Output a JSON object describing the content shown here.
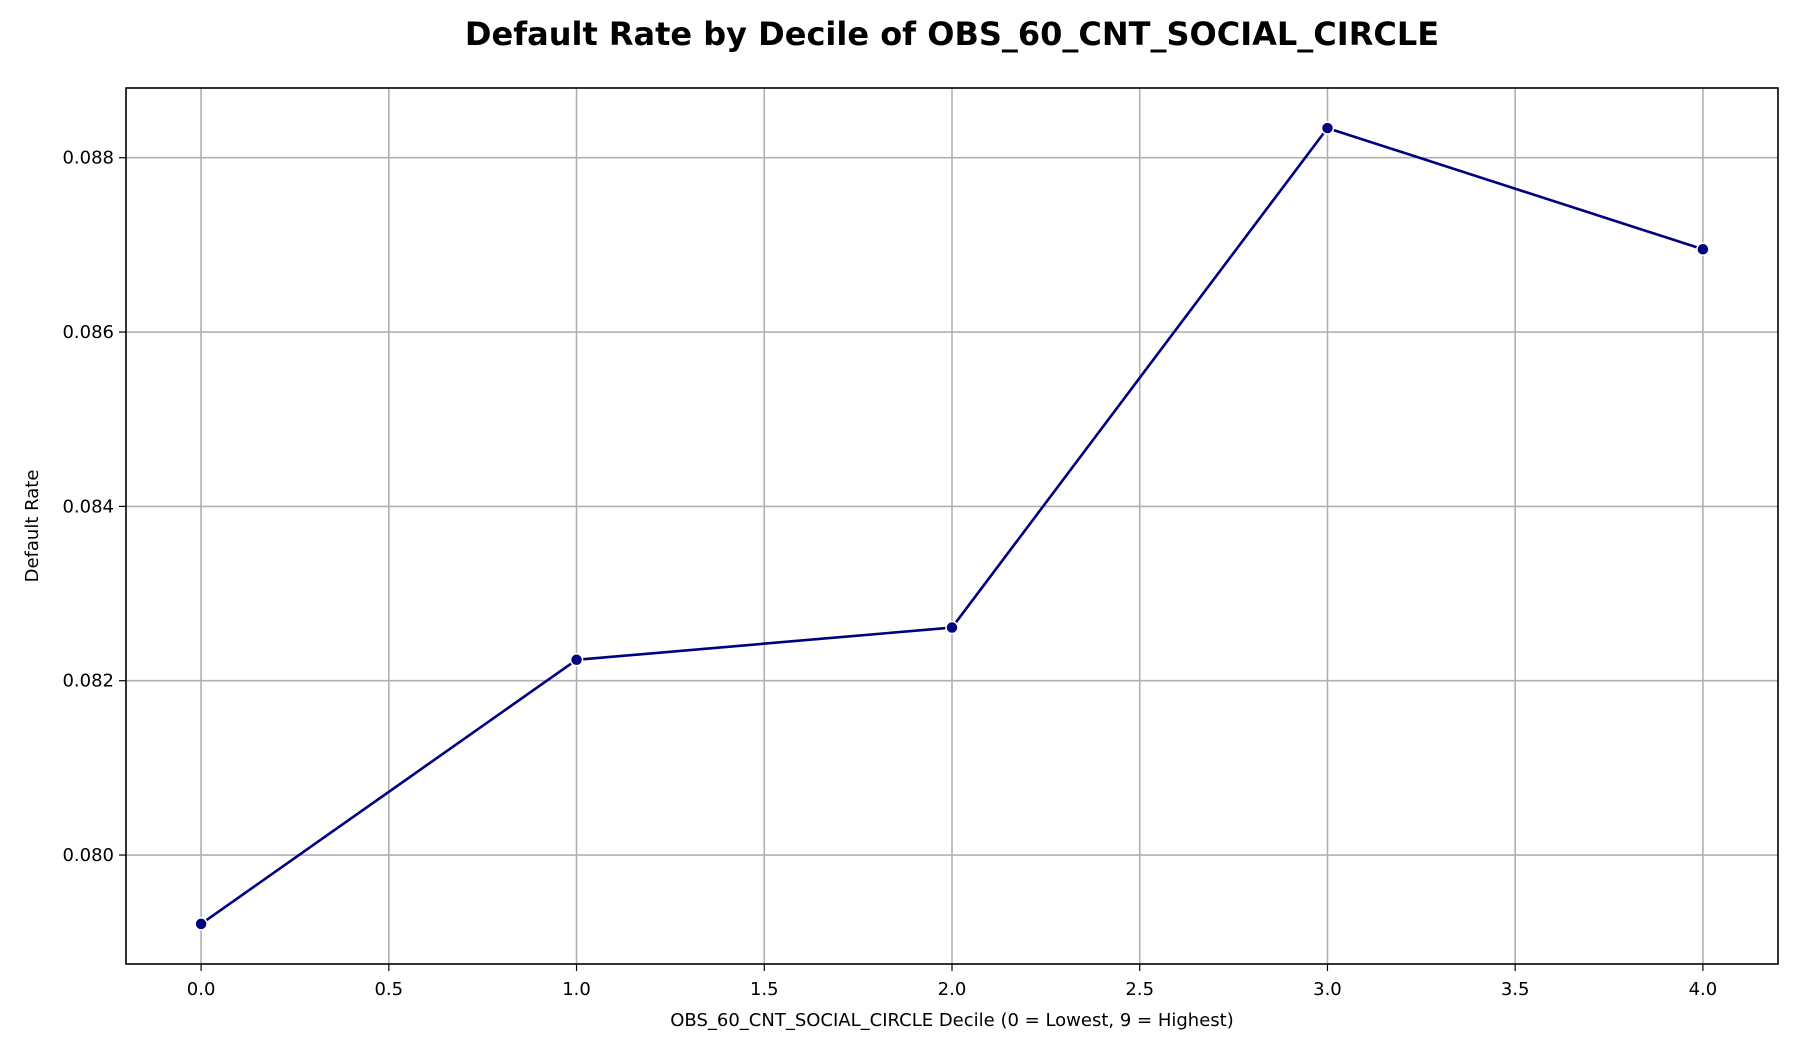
{
  "chart_data": {
    "type": "line",
    "title": "Default Rate by Decile of OBS_60_CNT_SOCIAL_CIRCLE",
    "xlabel": "OBS_60_CNT_SOCIAL_CIRCLE Decile (0 = Lowest, 9 = Highest)",
    "ylabel": "Default Rate",
    "xlim": [
      -0.2,
      4.2
    ],
    "ylim": [
      0.07875,
      0.0888
    ],
    "xticks": [
      0.0,
      0.5,
      1.0,
      1.5,
      2.0,
      2.5,
      3.0,
      3.5,
      4.0
    ],
    "xtick_labels": [
      "0.0",
      "0.5",
      "1.0",
      "1.5",
      "2.0",
      "2.5",
      "3.0",
      "3.5",
      "4.0"
    ],
    "yticks": [
      0.08,
      0.082,
      0.084,
      0.086,
      0.088
    ],
    "ytick_labels": [
      "0.080",
      "0.082",
      "0.084",
      "0.086",
      "0.088"
    ],
    "grid": true,
    "series": [
      {
        "x": [
          0,
          1,
          2,
          3,
          4
        ],
        "values": [
          0.07921,
          0.08224,
          0.08261,
          0.08834,
          0.08695
        ],
        "color": "#000080"
      }
    ]
  }
}
